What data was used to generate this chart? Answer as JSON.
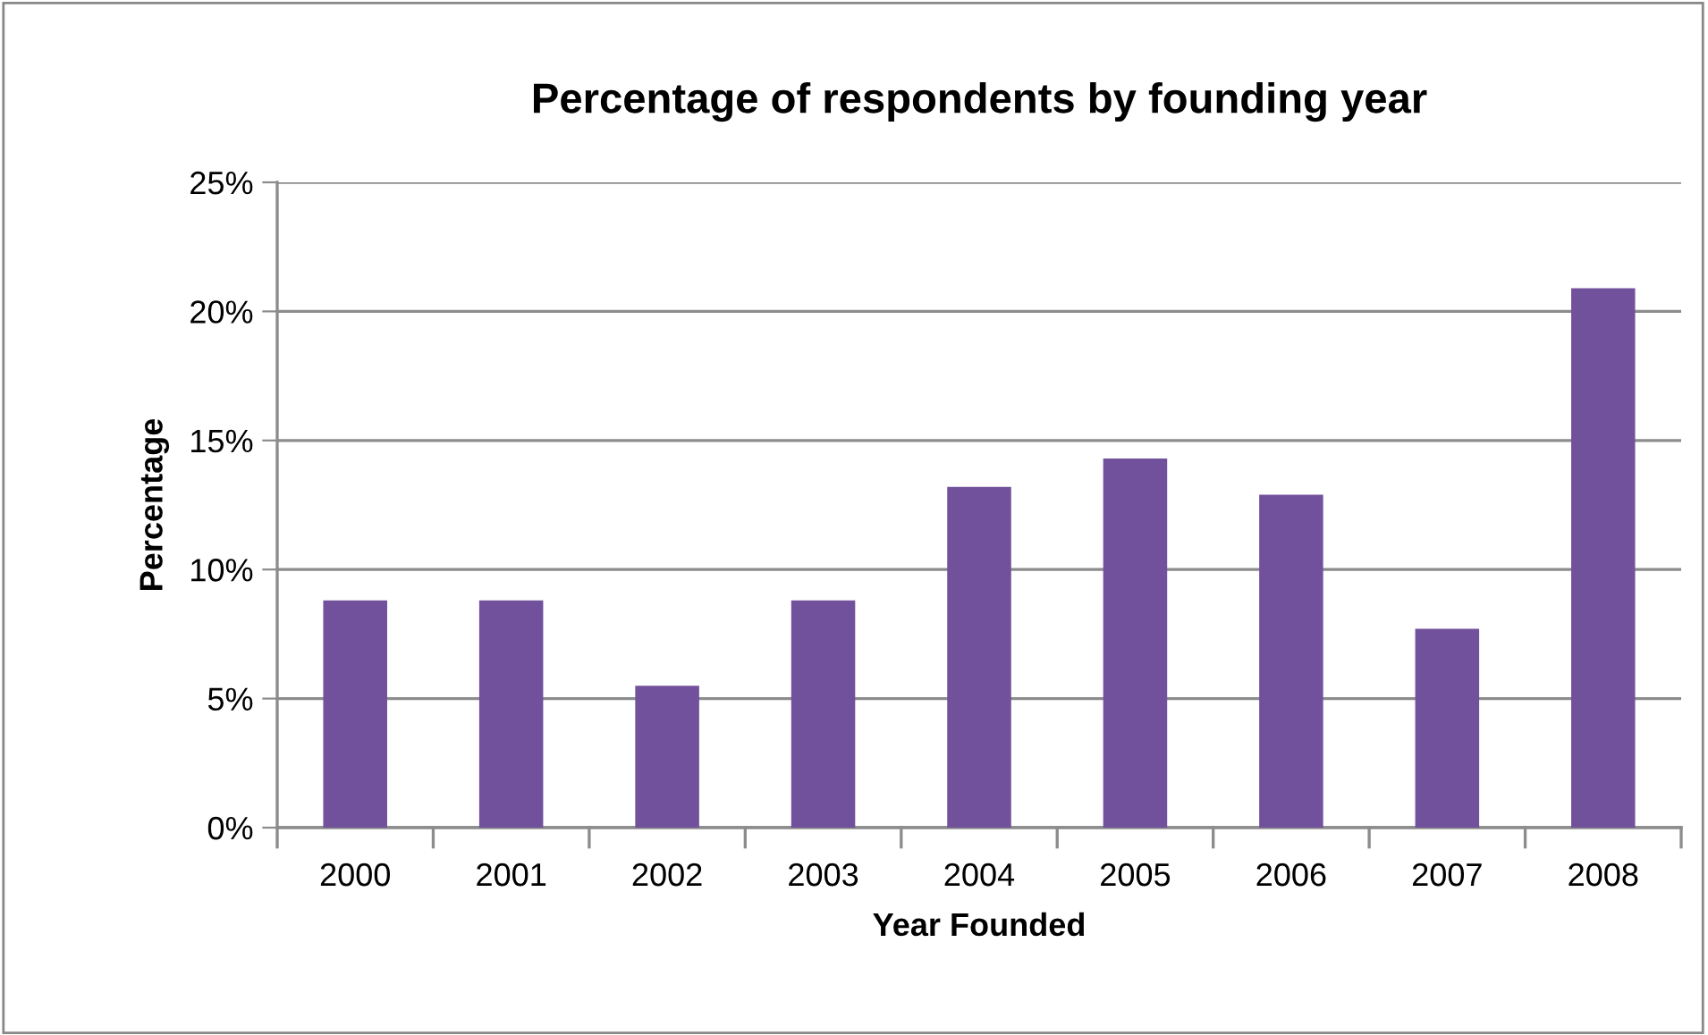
{
  "chart_data": {
    "type": "bar",
    "title": "Percentage of respondents by founding year",
    "xlabel": "Year Founded",
    "ylabel": "Percentage",
    "categories": [
      "2000",
      "2001",
      "2002",
      "2003",
      "2004",
      "2005",
      "2006",
      "2007",
      "2008"
    ],
    "values": [
      8.8,
      8.8,
      5.5,
      8.8,
      13.2,
      14.3,
      12.9,
      7.7,
      20.9
    ],
    "color": "#72519c",
    "ylim": [
      0,
      25
    ],
    "yticks": [
      {
        "value": 0,
        "label": "0%"
      },
      {
        "value": 5,
        "label": "5%"
      },
      {
        "value": 10,
        "label": "10%"
      },
      {
        "value": 15,
        "label": "15%"
      },
      {
        "value": 20,
        "label": "20%"
      },
      {
        "value": 25,
        "label": "25%"
      }
    ],
    "grid": "y",
    "legend": false
  }
}
